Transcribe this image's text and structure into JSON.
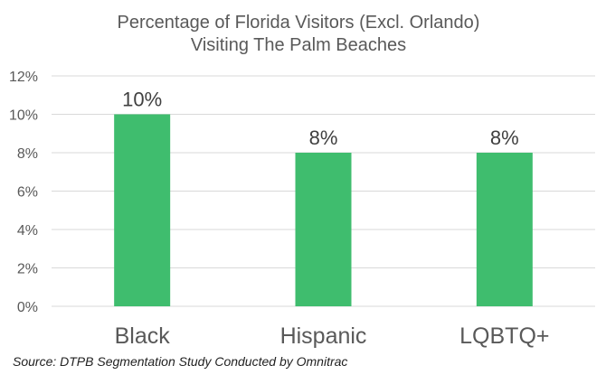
{
  "chart_data": {
    "type": "bar",
    "title": [
      "Percentage of Florida Visitors (Excl. Orlando)",
      "Visiting The Palm Beaches"
    ],
    "categories": [
      "Black",
      "Hispanic",
      "LQBTQ+"
    ],
    "values": [
      10,
      8,
      8
    ],
    "data_labels": [
      "10%",
      "8%",
      "8%"
    ],
    "xlabel": "",
    "ylabel": "",
    "ylim": [
      0,
      12
    ],
    "y_ticks": [
      0,
      2,
      4,
      6,
      8,
      10,
      12
    ],
    "y_tick_labels": [
      "0%",
      "2%",
      "4%",
      "6%",
      "8%",
      "10%",
      "12%"
    ],
    "grid": true,
    "legend": "none",
    "bar_color": "#3fbd6e"
  },
  "footer": {
    "source": "Source: DTPB Segmentation Study Conducted by Omnitrac"
  }
}
